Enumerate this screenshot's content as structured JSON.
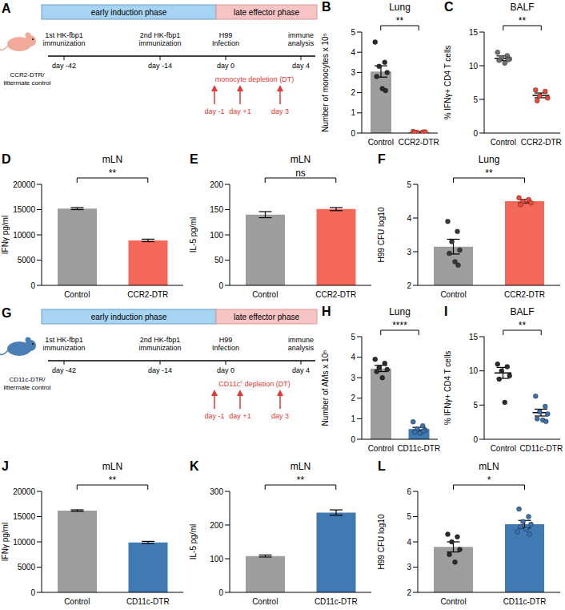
{
  "schematics": [
    {
      "panel": "A",
      "color": "#f2a99a",
      "mouse_label": [
        "CCR2-DTR/",
        "littermate control"
      ],
      "phases": [
        {
          "label": "early induction phase",
          "color": "#a8d4f4"
        },
        {
          "label": "late effector phase",
          "color": "#f6c4c4"
        }
      ],
      "events": [
        {
          "label": [
            "1st HK-fbp1",
            "immunization"
          ],
          "day": "day -42"
        },
        {
          "label": [
            "2nd HK-fbp1",
            "immunization"
          ],
          "day": "day -14"
        },
        {
          "label": [
            "H99",
            "Infection"
          ],
          "day": "day 0"
        },
        {
          "label": [
            "immune",
            "analysis"
          ],
          "day": "day 4"
        }
      ],
      "depletion": {
        "label": "monocyte depletion (DT)",
        "days": [
          "day -1",
          "day +1",
          "day 3"
        ],
        "color": "#e53935"
      }
    },
    {
      "panel": "G",
      "color": "#4a7fb5",
      "mouse_label": [
        "CD11c-DTR/",
        "littermate control"
      ],
      "phases": [
        {
          "label": "early induction phase",
          "color": "#a8d4f4"
        },
        {
          "label": "late effector phase",
          "color": "#f6c4c4"
        }
      ],
      "events": [
        {
          "label": [
            "1st HK-fbp1",
            "immunization"
          ],
          "day": "day -42"
        },
        {
          "label": [
            "2nd HK-fbp1",
            "immunization"
          ],
          "day": "day -14"
        },
        {
          "label": [
            "H99",
            "Infection"
          ],
          "day": "day 0"
        },
        {
          "label": [
            "immune",
            "analysis"
          ],
          "day": "day 4"
        }
      ],
      "depletion": {
        "label": "CD11c⁺ depletion (DT)",
        "days": [
          "day -1",
          "day +1",
          "day 3"
        ],
        "color": "#e53935"
      }
    }
  ],
  "chart_data": [
    {
      "panel": "B",
      "type": "bar",
      "title": "Lung",
      "y_label": "Number of monocytes x 10⁵",
      "categories": [
        "Control",
        "CCR2-DTR"
      ],
      "values": [
        3.05,
        0.05
      ],
      "errors": [
        0.28,
        0.02
      ],
      "colors": [
        "#9e9e9e",
        "#f4685a"
      ],
      "points": [
        {
          "color": "#2b2b2b",
          "values": [
            4.5,
            3.5,
            3.3,
            3.0,
            2.8,
            2.2,
            2.1
          ]
        },
        {
          "color": "#e8493b",
          "values": [
            0.08,
            0.05,
            0.03,
            0.06,
            0.04
          ]
        }
      ],
      "ylim": [
        0,
        5
      ],
      "yticks": [
        0,
        1,
        2,
        3,
        4,
        5
      ],
      "annotation": "**"
    },
    {
      "panel": "C",
      "type": "dot",
      "title": "BALF",
      "y_label": "% IFNγ+ CD4 T cells",
      "categories": [
        "Control",
        "CCR2-DTR"
      ],
      "values": [
        11.1,
        5.6
      ],
      "errors": [
        0.35,
        0.35
      ],
      "points": [
        {
          "color": "#6e6e6e",
          "values": [
            12.0,
            11.5,
            11.2,
            11.0,
            10.8,
            10.4,
            10.9
          ]
        },
        {
          "color": "#e8493b",
          "values": [
            6.4,
            6.2,
            5.5,
            5.2,
            4.8
          ]
        }
      ],
      "ylim": [
        0,
        15
      ],
      "yticks": [
        0,
        5,
        10,
        15
      ],
      "annotation": "**"
    },
    {
      "panel": "D",
      "type": "bar",
      "title": "mLN",
      "y_label": "IFNγ pg/ml",
      "categories": [
        "Control",
        "CCR2-DTR"
      ],
      "values": [
        15200,
        8900
      ],
      "errors": [
        200,
        250
      ],
      "colors": [
        "#9e9e9e",
        "#f4685a"
      ],
      "ylim": [
        0,
        20000
      ],
      "yticks": [
        0,
        5000,
        10000,
        15000,
        20000
      ],
      "annotation": "**"
    },
    {
      "panel": "E",
      "type": "bar",
      "title": "mLN",
      "y_label": "IL-5 pg/ml",
      "categories": [
        "Control",
        "CCR2-DTR"
      ],
      "values": [
        140,
        151
      ],
      "errors": [
        6,
        3
      ],
      "colors": [
        "#9e9e9e",
        "#f4685a"
      ],
      "ylim": [
        0,
        200
      ],
      "yticks": [
        0,
        50,
        100,
        150,
        200
      ],
      "annotation": "ns"
    },
    {
      "panel": "F",
      "type": "bar",
      "title": "Lung",
      "y_label": "H99 CFU log10",
      "categories": [
        "Control",
        "CCR2-DTR"
      ],
      "values": [
        3.15,
        4.5
      ],
      "errors": [
        0.22,
        0.05
      ],
      "colors": [
        "#9e9e9e",
        "#f4685a"
      ],
      "points": [
        {
          "color": "#3a3a3a",
          "values": [
            3.9,
            3.6,
            3.3,
            3.05,
            2.95,
            2.7,
            2.6
          ]
        },
        {
          "color": "#e8493b",
          "values": [
            4.6,
            4.55,
            4.5,
            4.45,
            4.4
          ]
        }
      ],
      "ylim": [
        2,
        5
      ],
      "yticks": [
        2,
        3,
        4,
        5
      ],
      "annotation": "**"
    },
    {
      "panel": "H",
      "type": "bar",
      "title": "Lung",
      "y_label": "Number of AMs x 10⁵",
      "categories": [
        "Control",
        "CD11c-DTR"
      ],
      "values": [
        3.45,
        0.5
      ],
      "errors": [
        0.15,
        0.08
      ],
      "colors": [
        "#9e9e9e",
        "#3f7ab3"
      ],
      "points": [
        {
          "color": "#2b2b2b",
          "values": [
            3.9,
            3.7,
            3.5,
            3.4,
            3.3,
            3.0
          ]
        },
        {
          "color": "#3d6fa8",
          "values": [
            0.85,
            0.65,
            0.5,
            0.45,
            0.35,
            0.3,
            0.4
          ]
        }
      ],
      "ylim": [
        0,
        5
      ],
      "yticks": [
        0,
        1,
        2,
        3,
        4,
        5
      ],
      "annotation": "****"
    },
    {
      "panel": "I",
      "type": "dot",
      "title": "BALF",
      "y_label": "% IFNγ+ CD4 T cells",
      "categories": [
        "Control",
        "CD11c-DTR"
      ],
      "values": [
        9.7,
        3.9
      ],
      "errors": [
        0.8,
        0.5
      ],
      "points": [
        {
          "color": "#2b2b2b",
          "values": [
            11.0,
            10.6,
            10.0,
            9.3,
            8.8,
            5.4
          ]
        },
        {
          "color": "#3d6fa8",
          "values": [
            6.3,
            4.8,
            4.0,
            3.7,
            3.0,
            2.8,
            2.6
          ]
        }
      ],
      "ylim": [
        0,
        15
      ],
      "yticks": [
        0,
        5,
        10,
        15
      ],
      "annotation": "**"
    },
    {
      "panel": "J",
      "type": "bar",
      "title": "mLN",
      "y_label": "IFNγ pg/ml",
      "categories": [
        "Control",
        "CD11c-DTR"
      ],
      "values": [
        16200,
        9900
      ],
      "errors": [
        150,
        200
      ],
      "colors": [
        "#9e9e9e",
        "#3f7ab3"
      ],
      "ylim": [
        0,
        20000
      ],
      "yticks": [
        0,
        5000,
        10000,
        15000,
        20000
      ],
      "annotation": "**"
    },
    {
      "panel": "K",
      "type": "bar",
      "title": "mLN",
      "y_label": "IL-5 pg/ml",
      "categories": [
        "Control",
        "CD11c-DTR"
      ],
      "values": [
        108,
        237
      ],
      "errors": [
        3,
        8
      ],
      "colors": [
        "#9e9e9e",
        "#3f7ab3"
      ],
      "ylim": [
        0,
        300
      ],
      "yticks": [
        0,
        100,
        200,
        300
      ],
      "annotation": "**"
    },
    {
      "panel": "L",
      "type": "bar",
      "title": "mLN",
      "y_label": "H99 CFU log10",
      "categories": [
        "Control",
        "CD11c-DTR"
      ],
      "values": [
        3.8,
        4.7
      ],
      "errors": [
        0.2,
        0.15
      ],
      "colors": [
        "#9e9e9e",
        "#3f7ab3"
      ],
      "points": [
        {
          "color": "#2b2b2b",
          "values": [
            4.3,
            4.2,
            4.0,
            3.7,
            3.5,
            3.2
          ]
        },
        {
          "color": "#3d6fa8",
          "values": [
            5.3,
            5.0,
            4.8,
            4.7,
            4.6,
            4.5,
            4.3,
            4.4
          ]
        }
      ],
      "ylim": [
        2,
        6
      ],
      "yticks": [
        2,
        3,
        4,
        5,
        6
      ],
      "annotation": "*"
    }
  ]
}
